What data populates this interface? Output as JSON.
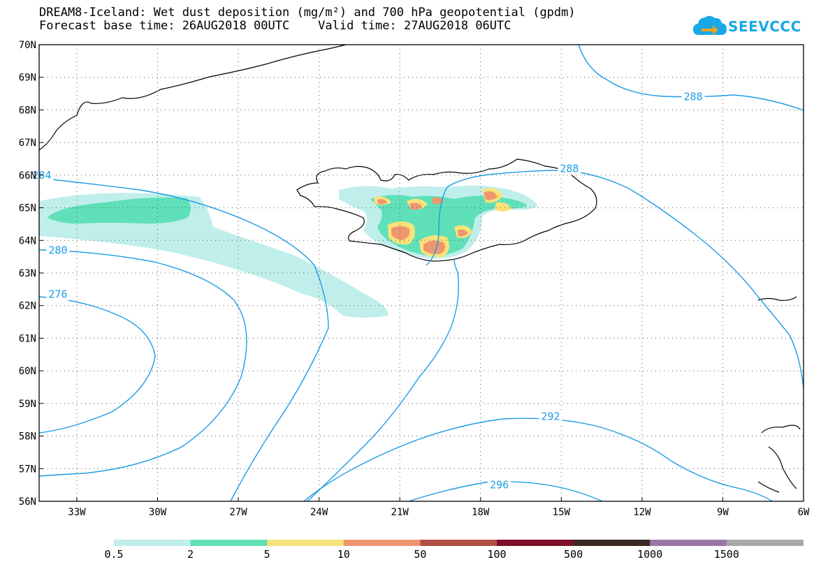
{
  "header": {
    "title_line1": "DREAM8-Iceland: Wet dust deposition (mg/m²) and 700 hPa geopotential (gpdm)",
    "title_line2": "Forecast base time: 26AUG2018 00UTC    Valid time: 27AUG2018 06UTC"
  },
  "logo": {
    "text": "SEEVCCC",
    "icon": "cloud-arrow-icon",
    "color": "#1aa7e8"
  },
  "map": {
    "lat_labels": [
      "70N",
      "69N",
      "68N",
      "67N",
      "66N",
      "65N",
      "64N",
      "63N",
      "62N",
      "61N",
      "60N",
      "59N",
      "58N",
      "57N",
      "56N"
    ],
    "lon_labels": [
      "33W",
      "30W",
      "27W",
      "24W",
      "21W",
      "18W",
      "15W",
      "12W",
      "9W",
      "6W"
    ],
    "lat_range": [
      56,
      70
    ],
    "lon_range": [
      -34.4,
      -6
    ],
    "grid": "dotted",
    "contour_color": "#1d9be6",
    "contour_labels": [
      {
        "value": "288",
        "lon": -10.1,
        "lat": 68.4
      },
      {
        "value": "288",
        "lon": -14.7,
        "lat": 66.2
      },
      {
        "value": "284",
        "lon": -34.3,
        "lat": 66.0
      },
      {
        "value": "280",
        "lon": -33.7,
        "lat": 63.7
      },
      {
        "value": "276",
        "lon": -33.7,
        "lat": 62.35
      },
      {
        "value": "292",
        "lon": -15.4,
        "lat": 58.6
      },
      {
        "value": "296",
        "lon": -17.3,
        "lat": 56.5
      }
    ]
  },
  "legend": {
    "colors": [
      "#c0efeb",
      "#5fe0b8",
      "#f8e27a",
      "#ee9670",
      "#b24f45",
      "#7d0f2a",
      "#3a2a24",
      "#9a76a6",
      "#a8a8a8"
    ],
    "labels": [
      "0.5",
      "2",
      "5",
      "10",
      "50",
      "100",
      "500",
      "1000",
      "1500"
    ]
  }
}
